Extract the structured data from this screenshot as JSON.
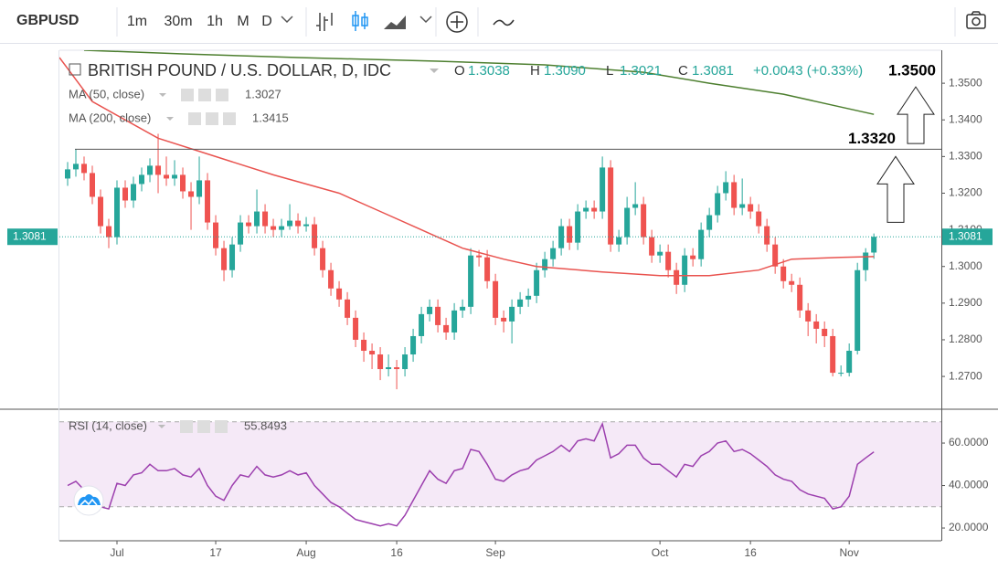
{
  "toolbar": {
    "symbol": "GBPUSD",
    "intervals": [
      "1m",
      "30m",
      "1h",
      "M",
      "D"
    ]
  },
  "chart_data": [
    {
      "type": "candlestick",
      "title": "BRITISH POUND / U.S. DOLLAR, D, IDC",
      "ohlc_legend": [
        {
          "key": "O",
          "value": "1.3038"
        },
        {
          "key": "H",
          "value": "1.3090"
        },
        {
          "key": "L",
          "value": "1.3021"
        },
        {
          "key": "C",
          "value": "1.3081"
        }
      ],
      "change": "+0.0043 (+0.33%)",
      "up_color": "#26a69a",
      "down_color": "#ef5350",
      "candles": {
        "open": [
          1.324,
          1.3265,
          1.328,
          1.3255,
          1.319,
          1.311,
          1.308,
          1.3215,
          1.318,
          1.3225,
          1.325,
          1.3275,
          1.325,
          1.324,
          1.325,
          1.3205,
          1.319,
          1.3235,
          1.312,
          1.305,
          1.299,
          1.306,
          1.312,
          1.311,
          1.315,
          1.311,
          1.31,
          1.311,
          1.3125,
          1.311,
          1.3115,
          1.305,
          1.299,
          1.294,
          1.291,
          1.286,
          1.28,
          1.277,
          1.276,
          1.272,
          1.2725,
          1.272,
          1.276,
          1.281,
          1.287,
          1.289,
          1.284,
          1.282,
          1.288,
          1.289,
          1.303,
          1.3025,
          1.296,
          1.286,
          1.285,
          1.289,
          1.291,
          1.292,
          1.299,
          1.302,
          1.305,
          1.311,
          1.3065,
          1.315,
          1.316,
          1.315,
          1.327,
          1.306,
          1.308,
          1.316,
          1.317,
          1.308,
          1.303,
          1.304,
          1.299,
          1.295,
          1.303,
          1.302,
          1.31,
          1.314,
          1.32,
          1.323,
          1.316,
          1.317,
          1.315,
          1.311,
          1.306,
          1.3,
          1.296,
          1.295,
          1.288,
          1.285,
          1.283,
          1.281,
          1.271,
          1.271,
          1.277,
          1.299,
          1.3038
        ],
        "high": [
          1.3285,
          1.332,
          1.33,
          1.3275,
          1.321,
          1.313,
          1.3235,
          1.3235,
          1.3245,
          1.327,
          1.3295,
          1.3362,
          1.33,
          1.329,
          1.327,
          1.323,
          1.33,
          1.3255,
          1.314,
          1.307,
          1.308,
          1.314,
          1.314,
          1.321,
          1.317,
          1.313,
          1.313,
          1.317,
          1.3145,
          1.3135,
          1.3135,
          1.307,
          1.301,
          1.296,
          1.293,
          1.288,
          1.282,
          1.279,
          1.278,
          1.276,
          1.2745,
          1.278,
          1.283,
          1.289,
          1.291,
          1.291,
          1.286,
          1.29,
          1.291,
          1.305,
          1.3045,
          1.3045,
          1.298,
          1.288,
          1.291,
          1.293,
          1.294,
          1.301,
          1.304,
          1.307,
          1.313,
          1.313,
          1.317,
          1.318,
          1.318,
          1.33,
          1.329,
          1.31,
          1.319,
          1.323,
          1.319,
          1.31,
          1.306,
          1.306,
          1.301,
          1.305,
          1.305,
          1.312,
          1.316,
          1.322,
          1.326,
          1.325,
          1.324,
          1.319,
          1.317,
          1.313,
          1.308,
          1.302,
          1.298,
          1.297,
          1.29,
          1.287,
          1.285,
          1.283,
          1.273,
          1.279,
          1.301,
          1.305,
          1.309
        ],
        "low": [
          1.322,
          1.3245,
          1.3235,
          1.317,
          1.309,
          1.305,
          1.306,
          1.316,
          1.316,
          1.3205,
          1.323,
          1.32,
          1.322,
          1.322,
          1.3185,
          1.31,
          1.317,
          1.31,
          1.303,
          1.296,
          1.297,
          1.304,
          1.309,
          1.309,
          1.309,
          1.308,
          1.308,
          1.31,
          1.309,
          1.3095,
          1.303,
          1.297,
          1.292,
          1.289,
          1.284,
          1.278,
          1.274,
          1.272,
          1.269,
          1.27,
          1.2665,
          1.27,
          1.274,
          1.279,
          1.285,
          1.282,
          1.28,
          1.28,
          1.286,
          1.287,
          1.3,
          1.294,
          1.284,
          1.282,
          1.279,
          1.287,
          1.289,
          1.29,
          1.297,
          1.3,
          1.303,
          1.3045,
          1.3045,
          1.313,
          1.313,
          1.313,
          1.304,
          1.304,
          1.306,
          1.314,
          1.306,
          1.301,
          1.301,
          1.297,
          1.2925,
          1.293,
          1.3,
          1.3,
          1.308,
          1.312,
          1.318,
          1.314,
          1.314,
          1.313,
          1.309,
          1.304,
          1.298,
          1.294,
          1.293,
          1.286,
          1.281,
          1.279,
          1.278,
          1.27,
          1.27,
          1.27,
          1.276,
          1.296,
          1.3021
        ],
        "close": [
          1.3265,
          1.328,
          1.3255,
          1.319,
          1.311,
          1.308,
          1.3215,
          1.318,
          1.3225,
          1.325,
          1.3275,
          1.325,
          1.324,
          1.325,
          1.3205,
          1.319,
          1.3235,
          1.312,
          1.305,
          1.299,
          1.306,
          1.312,
          1.311,
          1.315,
          1.311,
          1.31,
          1.311,
          1.3125,
          1.311,
          1.3115,
          1.305,
          1.299,
          1.294,
          1.291,
          1.286,
          1.28,
          1.277,
          1.276,
          1.272,
          1.2725,
          1.272,
          1.276,
          1.281,
          1.287,
          1.289,
          1.284,
          1.282,
          1.288,
          1.289,
          1.303,
          1.3025,
          1.296,
          1.286,
          1.285,
          1.289,
          1.291,
          1.292,
          1.299,
          1.302,
          1.305,
          1.311,
          1.3065,
          1.315,
          1.316,
          1.315,
          1.327,
          1.306,
          1.308,
          1.316,
          1.317,
          1.308,
          1.303,
          1.304,
          1.299,
          1.295,
          1.303,
          1.302,
          1.31,
          1.314,
          1.32,
          1.323,
          1.316,
          1.317,
          1.315,
          1.311,
          1.306,
          1.3,
          1.296,
          1.295,
          1.288,
          1.285,
          1.283,
          1.281,
          1.271,
          1.271,
          1.277,
          1.299,
          1.3038,
          1.3081
        ]
      },
      "series": [
        {
          "name": "MA (50, close)",
          "last_label": "1.3027",
          "color": "#e9534f",
          "x": [
            -1,
            3,
            11,
            18,
            25,
            33,
            38,
            43,
            48,
            53,
            57,
            65,
            72,
            78,
            84,
            88,
            94,
            98
          ],
          "values": [
            1.357,
            1.345,
            1.335,
            1.33,
            1.325,
            1.32,
            1.315,
            1.31,
            1.305,
            1.302,
            1.3,
            1.2985,
            1.2975,
            1.2975,
            1.299,
            1.302,
            1.3025,
            1.3027
          ]
        },
        {
          "name": "MA (200, close)",
          "last_label": "1.3415",
          "color": "#4d7f2f",
          "x": [
            2,
            14,
            28,
            45,
            58,
            70,
            78,
            87,
            93,
            98
          ],
          "values": [
            1.359,
            1.358,
            1.357,
            1.356,
            1.355,
            1.353,
            1.35,
            1.347,
            1.344,
            1.3415
          ]
        }
      ],
      "last_price": {
        "value": 1.3081,
        "label": "1.3081"
      },
      "annotations": [
        {
          "value": 1.35,
          "label": "1.3500",
          "line": false
        },
        {
          "value": 1.332,
          "label": "1.3320",
          "line": true
        }
      ],
      "xlim": [
        -1,
        106.2
      ],
      "ylim": [
        1.2613,
        1.359
      ],
      "yticks": [
        {
          "value": 1.27,
          "label": "1.2700"
        },
        {
          "value": 1.28,
          "label": "1.2800"
        },
        {
          "value": 1.29,
          "label": "1.2900"
        },
        {
          "value": 1.3,
          "label": "1.3000"
        },
        {
          "value": 1.31,
          "label": "1.3100"
        },
        {
          "value": 1.32,
          "label": "1.3200"
        },
        {
          "value": 1.33,
          "label": "1.3300"
        },
        {
          "value": 1.34,
          "label": "1.3400"
        },
        {
          "value": 1.35,
          "label": "1.3500"
        }
      ],
      "grid": false
    },
    {
      "type": "line",
      "series": [
        {
          "name": "RSI (14, close)",
          "last_label": "55.8493",
          "color": "#9c3fae",
          "values": [
            40,
            42,
            38,
            33,
            30,
            29,
            41,
            40,
            45,
            46,
            50,
            47,
            47,
            48,
            45,
            44,
            48,
            40,
            35,
            33,
            40,
            45,
            44,
            49,
            45,
            44,
            45,
            47,
            45,
            46,
            40,
            36,
            32,
            30,
            27,
            24,
            23,
            22,
            21,
            22,
            21,
            26,
            33,
            40,
            47,
            43,
            41,
            47,
            48,
            57,
            56,
            50,
            43,
            42,
            45,
            47,
            48,
            52,
            54,
            56,
            59,
            56,
            61,
            62,
            61,
            69,
            53,
            55,
            59,
            59,
            53,
            50,
            50,
            47,
            44,
            50,
            49,
            54,
            56,
            60,
            61,
            56,
            57,
            55,
            52,
            49,
            45,
            43,
            42,
            38,
            36,
            35,
            34,
            29,
            30,
            35,
            50,
            53,
            55.8493
          ]
        }
      ],
      "band": [
        30,
        70
      ],
      "band_color": "#9c27b0",
      "xlim": [
        -1,
        106.2
      ],
      "ylim": [
        14,
        75.5
      ],
      "yticks": [
        {
          "value": 20,
          "label": "20.0000"
        },
        {
          "value": 40,
          "label": "40.0000"
        },
        {
          "value": 60,
          "label": "60.0000"
        }
      ],
      "xticks": [
        {
          "value": 6,
          "label": "Jul"
        },
        {
          "value": 18,
          "label": "17"
        },
        {
          "value": 29,
          "label": "Aug"
        },
        {
          "value": 40,
          "label": "16"
        },
        {
          "value": 52,
          "label": "Sep"
        },
        {
          "value": 72,
          "label": "Oct"
        },
        {
          "value": 83,
          "label": "16"
        },
        {
          "value": 95,
          "label": "Nov"
        }
      ],
      "grid": false
    }
  ]
}
